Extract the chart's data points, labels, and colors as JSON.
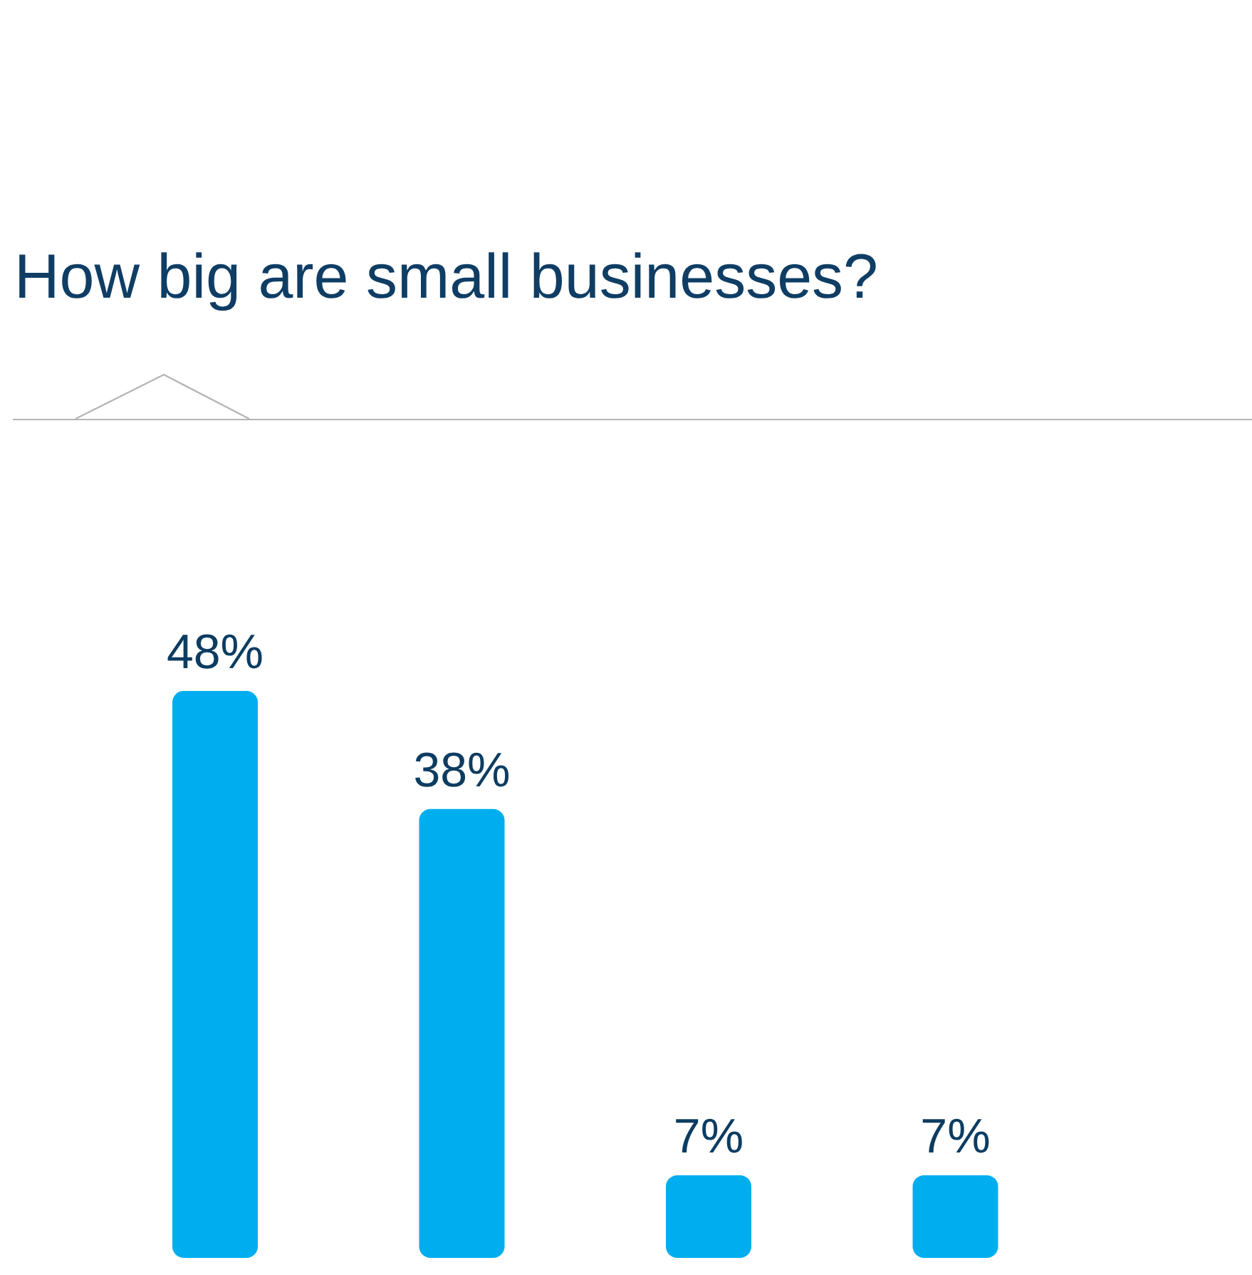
{
  "chart_data": {
    "type": "bar",
    "title": "How big are small businesses?",
    "categories": [
      null,
      null,
      null,
      null
    ],
    "values": [
      48,
      38,
      7,
      7
    ],
    "value_labels": [
      "48%",
      "38%",
      "7%",
      "7%"
    ],
    "color": "#00aeef"
  }
}
